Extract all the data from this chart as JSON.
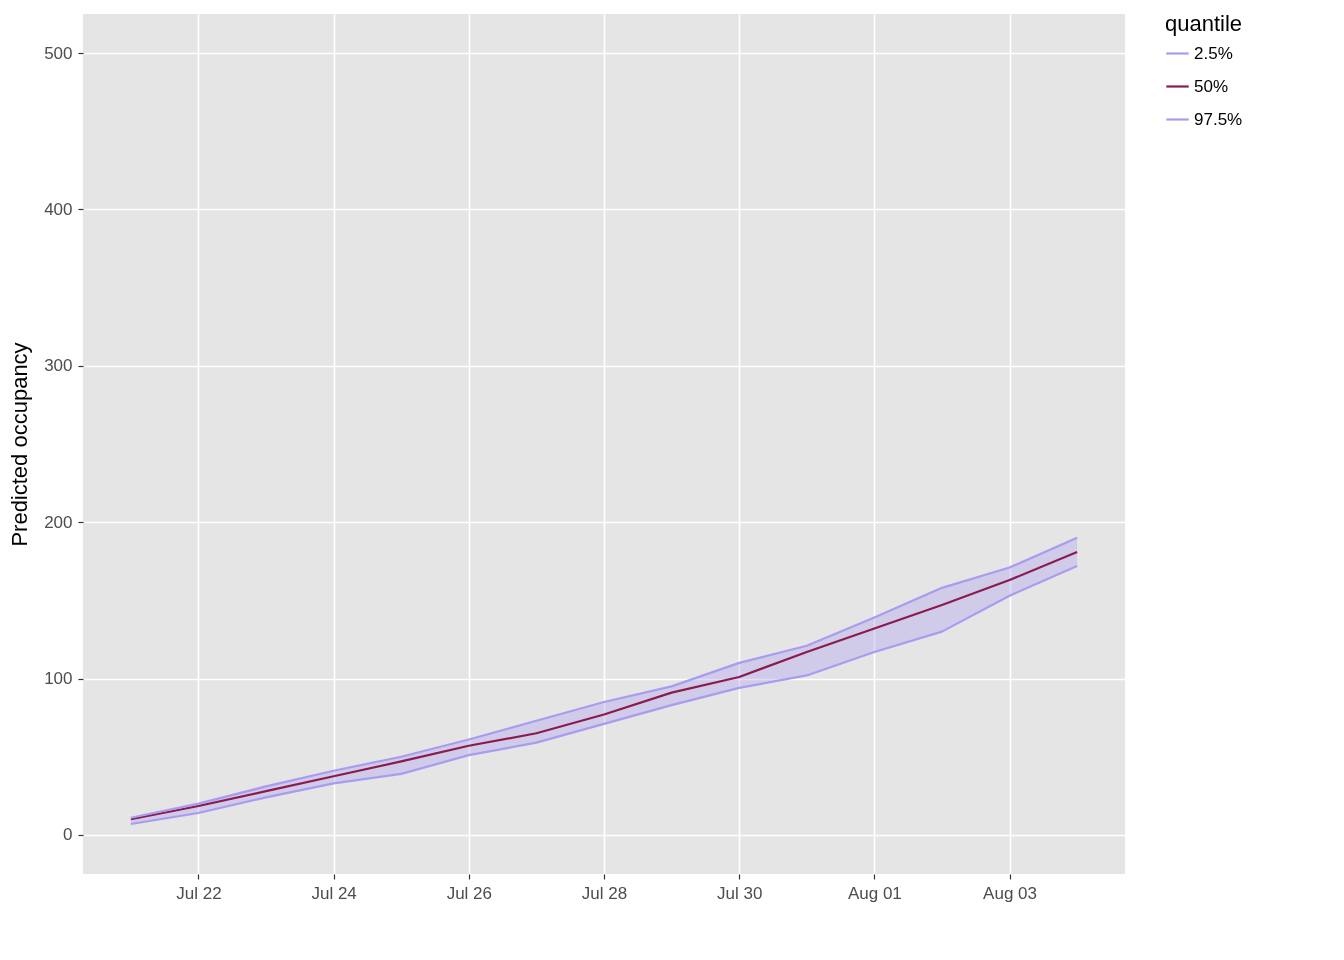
{
  "chart_data": {
    "type": "line",
    "ylabel": "Predicted occupancy",
    "legend_title": "quantile",
    "legend": "right",
    "grid": true,
    "x": [
      "--07-21",
      "--07-22",
      "--07-23",
      "--07-24",
      "--07-25",
      "--07-26",
      "--07-27",
      "--07-28",
      "--07-29",
      "--07-30",
      "--07-31",
      "--08-01",
      "--08-02",
      "--08-03",
      "--08-04"
    ],
    "xlim": [
      "--07-20T07:00",
      "--08-04T17:00"
    ],
    "xticks": [
      {
        "value": "--07-22",
        "label": "Jul 22"
      },
      {
        "value": "--07-24",
        "label": "Jul 24"
      },
      {
        "value": "--07-26",
        "label": "Jul 26"
      },
      {
        "value": "--07-28",
        "label": "Jul 28"
      },
      {
        "value": "--07-30",
        "label": "Jul 30"
      },
      {
        "value": "--08-01",
        "label": "Aug 01"
      },
      {
        "value": "--08-03",
        "label": "Aug 03"
      }
    ],
    "ylim": [
      -25,
      525
    ],
    "yticks": [
      0,
      100,
      200,
      300,
      400,
      500
    ],
    "series": [
      {
        "name": "2.5%",
        "color": "#a89cf0",
        "values": [
          7,
          14,
          24,
          33,
          39,
          51,
          59,
          71,
          83,
          94,
          102,
          117,
          130,
          153,
          172
        ]
      },
      {
        "name": "50%",
        "color": "#8b1a4f",
        "values": [
          10,
          18.5,
          28,
          37.5,
          47,
          57,
          65,
          77,
          91,
          101,
          117,
          132,
          147,
          163,
          181
        ],
        "lower": [
          7,
          14,
          24,
          33,
          39,
          51,
          59,
          71,
          83,
          94,
          102,
          117,
          130,
          153,
          172
        ],
        "upper": [
          11,
          20,
          31,
          41,
          50,
          61,
          73,
          85,
          95,
          110,
          121,
          139,
          158,
          171,
          190
        ]
      },
      {
        "name": "97.5%",
        "color": "#a89cf0",
        "values": [
          11,
          20,
          31,
          41,
          50,
          61,
          73,
          85,
          95,
          110,
          121,
          139,
          158,
          171,
          190
        ]
      }
    ]
  }
}
